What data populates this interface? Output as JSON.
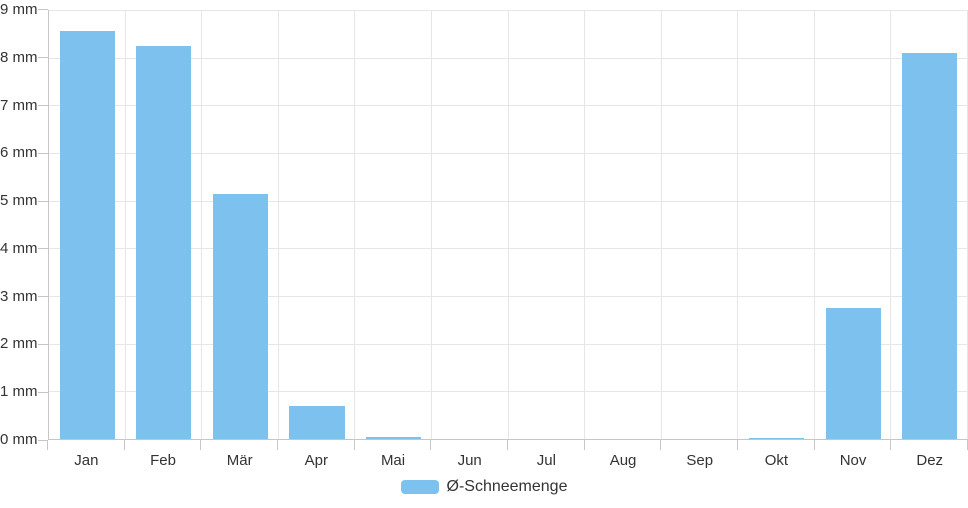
{
  "chart": {
    "y_axis": {
      "tick_labels": [
        "0 mm",
        "1 mm",
        "2 mm",
        "3 mm",
        "4 mm",
        "5 mm",
        "6 mm",
        "7 mm",
        "8 mm",
        "9 mm"
      ],
      "min": 0,
      "max": 9,
      "step": 1,
      "unit": "mm"
    },
    "x_axis": {
      "tick_labels": [
        "Jan",
        "Feb",
        "Mär",
        "Apr",
        "Mai",
        "Jun",
        "Jul",
        "Aug",
        "Sep",
        "Okt",
        "Nov",
        "Dez"
      ]
    },
    "legend": {
      "label": "Ø-Schneemenge",
      "position": "bottom-center"
    }
  },
  "chart_data": {
    "type": "bar",
    "title": "",
    "xlabel": "",
    "ylabel": "",
    "unit": "mm",
    "categories": [
      "Jan",
      "Feb",
      "Mär",
      "Apr",
      "Mai",
      "Jun",
      "Jul",
      "Aug",
      "Sep",
      "Okt",
      "Nov",
      "Dez"
    ],
    "series": [
      {
        "name": "Ø-Schneemenge",
        "values": [
          8.55,
          8.25,
          5.15,
          0.7,
          0.05,
          0,
          0,
          0,
          0,
          0.03,
          2.75,
          8.1
        ]
      }
    ],
    "ylim": [
      0,
      9
    ],
    "y_tick_step": 1,
    "grid": true,
    "legend_position": "bottom-center",
    "colors": {
      "bar": "#7DC1EE",
      "grid": "#e6e6e6",
      "axis": "#c6c6c6",
      "text": "#333333",
      "background": "#ffffff"
    }
  }
}
